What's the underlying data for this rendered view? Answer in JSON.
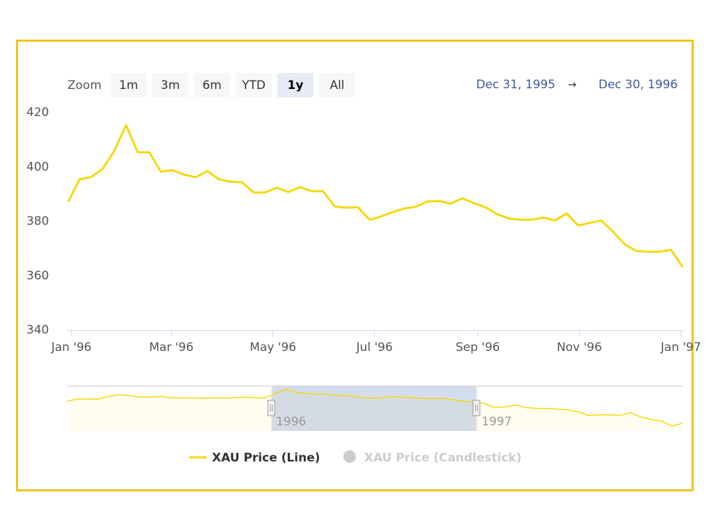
{
  "chart_data": {
    "type": "line",
    "zoom_label": "Zoom",
    "zoom_buttons": [
      "1m",
      "3m",
      "6m",
      "YTD",
      "1y",
      "All"
    ],
    "zoom_selected": 4,
    "range": [
      {
        "value": "1995-12-31",
        "label": "Dec 31, 1995"
      },
      {
        "value": "1996-12-30",
        "label": "Dec 30, 1996"
      }
    ],
    "range_separator": "→",
    "xlim": [
      "1995-12-30",
      "1997-01-02"
    ],
    "xticks": [
      {
        "value": "1996-01",
        "label": "Jan '96"
      },
      {
        "value": "1996-03",
        "label": "Mar '96"
      },
      {
        "value": "1996-05",
        "label": "May '96"
      },
      {
        "value": "1996-07",
        "label": "Jul '96"
      },
      {
        "value": "1996-09",
        "label": "Sep '96"
      },
      {
        "value": "1996-11",
        "label": "Nov '96"
      },
      {
        "value": "1997-01",
        "label": "Jan '97"
      }
    ],
    "ylim": [
      340,
      420
    ],
    "yticks": [
      340,
      360,
      380,
      400,
      420
    ],
    "grid": false,
    "series": [
      {
        "name": "XAU Price (Line)",
        "color": "#f5d90a",
        "visible": true,
        "values": [
          387.2,
          395.5,
          396.3,
          399.4,
          406,
          415.4,
          405.4,
          405.4,
          398.3,
          398.8,
          397.2,
          396.2,
          398.5,
          395.5,
          394.6,
          394.4,
          390.6,
          390.6,
          392.4,
          390.8,
          392.6,
          391.1,
          391.1,
          385.5,
          385,
          385.2,
          380.6,
          381.8,
          383.4,
          384.7,
          385.4,
          387.3,
          387.5,
          386.5,
          388.5,
          386.7,
          385.2,
          382.6,
          381.1,
          380.6,
          380.6,
          381.4,
          380.3,
          382.9,
          378.5,
          379.5,
          380.3,
          376.2,
          371.6,
          369.1,
          368.8,
          368.8,
          369.6,
          363.2
        ]
      },
      {
        "name": "XAU Price (Candlestick)",
        "color": "#cccccc",
        "visible": false
      }
    ],
    "navigator": {
      "xlim": [
        "1995-01",
        "1998-01"
      ],
      "xticks": [
        {
          "value": "1996-01",
          "label": "1996"
        },
        {
          "value": "1997-01",
          "label": "1997"
        }
      ],
      "color": "#f5d90a",
      "values": [
        363,
        372,
        372,
        372,
        383,
        389,
        386,
        380,
        380,
        383,
        377,
        377,
        377,
        375,
        377,
        377,
        377,
        380,
        377,
        377,
        395,
        412,
        398,
        395,
        392,
        392,
        386,
        386,
        380,
        375,
        377,
        380,
        380,
        377,
        375,
        375,
        375,
        369,
        363,
        360,
        354,
        337,
        340,
        348,
        337,
        334,
        334,
        331,
        328,
        320,
        305,
        308,
        308,
        305,
        317,
        299,
        288,
        282,
        262,
        274
      ]
    }
  }
}
